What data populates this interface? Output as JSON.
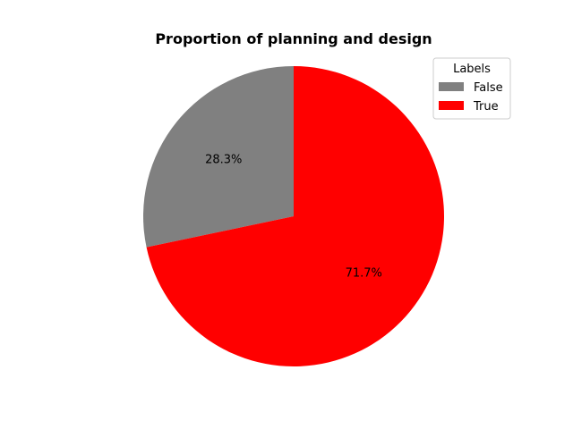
{
  "chart_data": {
    "type": "pie",
    "title": "Proportion of planning and design",
    "labels": [
      "False",
      "True"
    ],
    "values": [
      28.3,
      71.7
    ],
    "value_labels": [
      "28.3%",
      "71.7%"
    ],
    "colors": [
      "#808080",
      "#ff0000"
    ],
    "start_angle_deg": 90,
    "direction": "counterclockwise",
    "legend": {
      "title": "Labels",
      "placement": "top-right",
      "entries": [
        "False",
        "True"
      ]
    }
  }
}
